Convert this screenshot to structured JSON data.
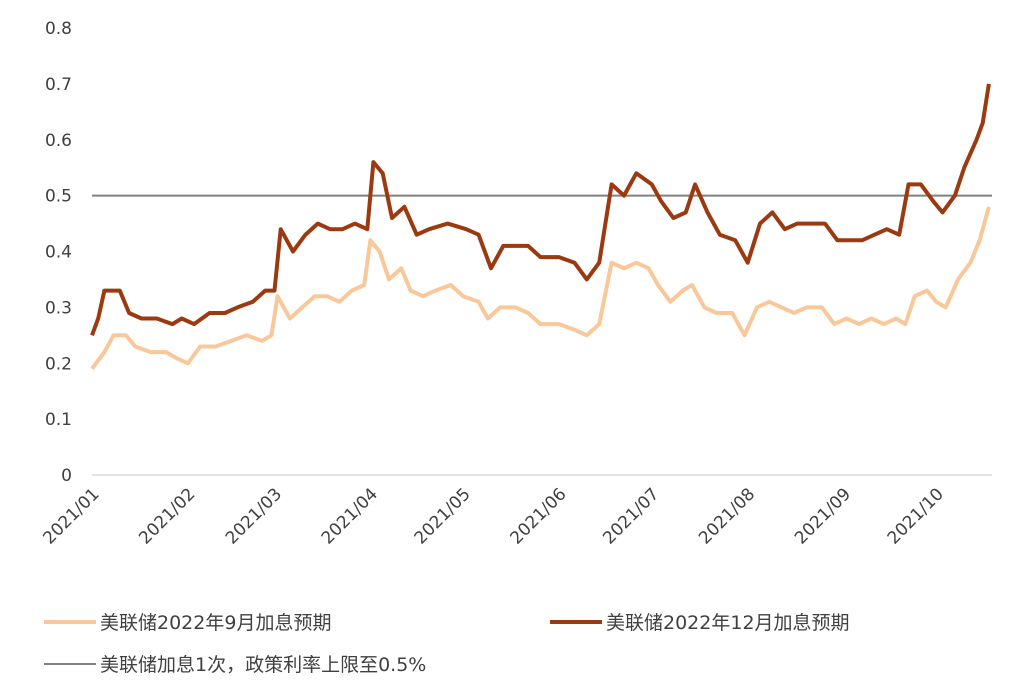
{
  "chart_data": {
    "type": "line",
    "title": "",
    "xlabel": "",
    "ylabel": "",
    "ylim": [
      0,
      0.8
    ],
    "yticks": [
      "0",
      "0.1",
      "0.2",
      "0.3",
      "0.4",
      "0.5",
      "0.6",
      "0.7",
      "0.8"
    ],
    "xticks": [
      "2021/01",
      "2021/02",
      "2021/03",
      "2021/04",
      "2021/05",
      "2021/06",
      "2021/07",
      "2021/08",
      "2021/09",
      "2021/10"
    ],
    "grid": false,
    "legend_position": "bottom",
    "reference_line": {
      "name": "美联储加息1次，政策利率上限至0.5%",
      "value": 0.5,
      "color": "#808080"
    },
    "series": [
      {
        "name": "美联储2022年9月加息预期",
        "color": "#F8C89A",
        "points": [
          [
            "2021-01-01",
            0.19
          ],
          [
            "2021-01-05",
            0.22
          ],
          [
            "2021-01-08",
            0.25
          ],
          [
            "2021-01-12",
            0.25
          ],
          [
            "2021-01-15",
            0.23
          ],
          [
            "2021-01-20",
            0.22
          ],
          [
            "2021-01-25",
            0.22
          ],
          [
            "2021-01-28",
            0.21
          ],
          [
            "2021-02-01",
            0.2
          ],
          [
            "2021-02-05",
            0.23
          ],
          [
            "2021-02-10",
            0.23
          ],
          [
            "2021-02-15",
            0.24
          ],
          [
            "2021-02-20",
            0.25
          ],
          [
            "2021-02-25",
            0.24
          ],
          [
            "2021-02-28",
            0.25
          ],
          [
            "2021-03-02",
            0.32
          ],
          [
            "2021-03-06",
            0.28
          ],
          [
            "2021-03-10",
            0.3
          ],
          [
            "2021-03-14",
            0.32
          ],
          [
            "2021-03-18",
            0.32
          ],
          [
            "2021-03-22",
            0.31
          ],
          [
            "2021-03-26",
            0.33
          ],
          [
            "2021-03-30",
            0.34
          ],
          [
            "2021-04-01",
            0.42
          ],
          [
            "2021-04-04",
            0.4
          ],
          [
            "2021-04-07",
            0.35
          ],
          [
            "2021-04-11",
            0.37
          ],
          [
            "2021-04-14",
            0.33
          ],
          [
            "2021-04-18",
            0.32
          ],
          [
            "2021-04-22",
            0.33
          ],
          [
            "2021-04-27",
            0.34
          ],
          [
            "2021-05-01",
            0.32
          ],
          [
            "2021-05-06",
            0.31
          ],
          [
            "2021-05-09",
            0.28
          ],
          [
            "2021-05-13",
            0.3
          ],
          [
            "2021-05-18",
            0.3
          ],
          [
            "2021-05-22",
            0.29
          ],
          [
            "2021-05-26",
            0.27
          ],
          [
            "2021-06-01",
            0.27
          ],
          [
            "2021-06-06",
            0.26
          ],
          [
            "2021-06-10",
            0.25
          ],
          [
            "2021-06-14",
            0.27
          ],
          [
            "2021-06-18",
            0.38
          ],
          [
            "2021-06-22",
            0.37
          ],
          [
            "2021-06-26",
            0.38
          ],
          [
            "2021-06-30",
            0.37
          ],
          [
            "2021-07-03",
            0.34
          ],
          [
            "2021-07-07",
            0.31
          ],
          [
            "2021-07-11",
            0.33
          ],
          [
            "2021-07-14",
            0.34
          ],
          [
            "2021-07-18",
            0.3
          ],
          [
            "2021-07-22",
            0.29
          ],
          [
            "2021-07-27",
            0.29
          ],
          [
            "2021-07-31",
            0.25
          ],
          [
            "2021-08-04",
            0.3
          ],
          [
            "2021-08-08",
            0.31
          ],
          [
            "2021-08-12",
            0.3
          ],
          [
            "2021-08-16",
            0.29
          ],
          [
            "2021-08-20",
            0.3
          ],
          [
            "2021-08-25",
            0.3
          ],
          [
            "2021-08-29",
            0.27
          ],
          [
            "2021-09-02",
            0.28
          ],
          [
            "2021-09-06",
            0.27
          ],
          [
            "2021-09-10",
            0.28
          ],
          [
            "2021-09-14",
            0.27
          ],
          [
            "2021-09-18",
            0.28
          ],
          [
            "2021-09-21",
            0.27
          ],
          [
            "2021-09-24",
            0.32
          ],
          [
            "2021-09-28",
            0.33
          ],
          [
            "2021-10-01",
            0.31
          ],
          [
            "2021-10-04",
            0.3
          ],
          [
            "2021-10-08",
            0.35
          ],
          [
            "2021-10-12",
            0.38
          ],
          [
            "2021-10-15",
            0.42
          ],
          [
            "2021-10-18",
            0.48
          ]
        ]
      },
      {
        "name": "美联储2022年12月加息预期",
        "color": "#9B3A10",
        "points": [
          [
            "2021-01-01",
            0.25
          ],
          [
            "2021-01-03",
            0.28
          ],
          [
            "2021-01-05",
            0.33
          ],
          [
            "2021-01-10",
            0.33
          ],
          [
            "2021-01-13",
            0.29
          ],
          [
            "2021-01-17",
            0.28
          ],
          [
            "2021-01-22",
            0.28
          ],
          [
            "2021-01-27",
            0.27
          ],
          [
            "2021-01-30",
            0.28
          ],
          [
            "2021-02-03",
            0.27
          ],
          [
            "2021-02-08",
            0.29
          ],
          [
            "2021-02-13",
            0.29
          ],
          [
            "2021-02-17",
            0.3
          ],
          [
            "2021-02-22",
            0.31
          ],
          [
            "2021-02-26",
            0.33
          ],
          [
            "2021-03-01",
            0.33
          ],
          [
            "2021-03-03",
            0.44
          ],
          [
            "2021-03-07",
            0.4
          ],
          [
            "2021-03-11",
            0.43
          ],
          [
            "2021-03-15",
            0.45
          ],
          [
            "2021-03-19",
            0.44
          ],
          [
            "2021-03-23",
            0.44
          ],
          [
            "2021-03-27",
            0.45
          ],
          [
            "2021-03-31",
            0.44
          ],
          [
            "2021-04-02",
            0.56
          ],
          [
            "2021-04-05",
            0.54
          ],
          [
            "2021-04-08",
            0.46
          ],
          [
            "2021-04-12",
            0.48
          ],
          [
            "2021-04-16",
            0.43
          ],
          [
            "2021-04-20",
            0.44
          ],
          [
            "2021-04-26",
            0.45
          ],
          [
            "2021-05-02",
            0.44
          ],
          [
            "2021-05-06",
            0.43
          ],
          [
            "2021-05-10",
            0.37
          ],
          [
            "2021-05-14",
            0.41
          ],
          [
            "2021-05-18",
            0.41
          ],
          [
            "2021-05-22",
            0.41
          ],
          [
            "2021-05-26",
            0.39
          ],
          [
            "2021-06-01",
            0.39
          ],
          [
            "2021-06-06",
            0.38
          ],
          [
            "2021-06-10",
            0.35
          ],
          [
            "2021-06-14",
            0.38
          ],
          [
            "2021-06-18",
            0.52
          ],
          [
            "2021-06-22",
            0.5
          ],
          [
            "2021-06-26",
            0.54
          ],
          [
            "2021-07-01",
            0.52
          ],
          [
            "2021-07-04",
            0.49
          ],
          [
            "2021-07-08",
            0.46
          ],
          [
            "2021-07-12",
            0.47
          ],
          [
            "2021-07-15",
            0.52
          ],
          [
            "2021-07-19",
            0.47
          ],
          [
            "2021-07-23",
            0.43
          ],
          [
            "2021-07-28",
            0.42
          ],
          [
            "2021-08-01",
            0.38
          ],
          [
            "2021-08-05",
            0.45
          ],
          [
            "2021-08-09",
            0.47
          ],
          [
            "2021-08-13",
            0.44
          ],
          [
            "2021-08-17",
            0.45
          ],
          [
            "2021-08-22",
            0.45
          ],
          [
            "2021-08-26",
            0.45
          ],
          [
            "2021-08-30",
            0.42
          ],
          [
            "2021-09-03",
            0.42
          ],
          [
            "2021-09-07",
            0.42
          ],
          [
            "2021-09-11",
            0.43
          ],
          [
            "2021-09-15",
            0.44
          ],
          [
            "2021-09-19",
            0.43
          ],
          [
            "2021-09-22",
            0.52
          ],
          [
            "2021-09-26",
            0.52
          ],
          [
            "2021-09-30",
            0.49
          ],
          [
            "2021-10-03",
            0.47
          ],
          [
            "2021-10-07",
            0.5
          ],
          [
            "2021-10-10",
            0.55
          ],
          [
            "2021-10-14",
            0.6
          ],
          [
            "2021-10-16",
            0.63
          ],
          [
            "2021-10-18",
            0.7
          ]
        ]
      }
    ]
  }
}
